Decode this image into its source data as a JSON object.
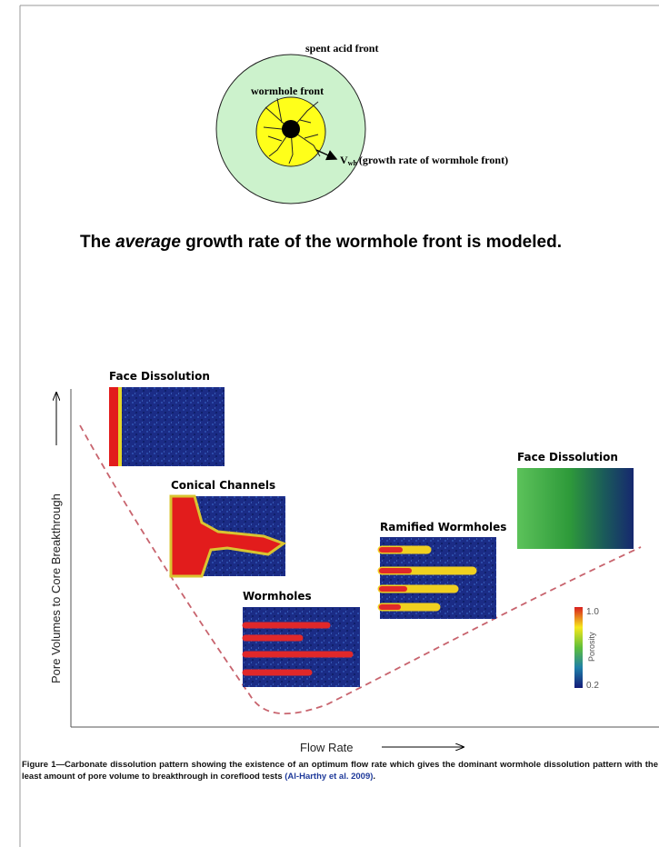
{
  "top_diagram": {
    "outer_label": "spent acid front",
    "inner_label": "wormhole front",
    "velocity_symbol": "V",
    "velocity_subscript": "wh",
    "velocity_label": "(growth rate of wormhole front)"
  },
  "heading": {
    "before": "The ",
    "emphasis": "average",
    "after": " growth rate of the wormhole front is modeled."
  },
  "figure": {
    "y_axis_label": "Pore Volumes to Core Breakthrough",
    "x_axis_label": "Flow Rate",
    "panels": [
      "Face Dissolution",
      "Conical Channels",
      "Wormholes",
      "Ramified Wormholes",
      "Face Dissolution"
    ],
    "colorbar": {
      "top": "1.0",
      "label": "Porosity",
      "bottom": "0.2"
    }
  },
  "caption": {
    "text": "Figure 1—Carbonate dissolution pattern showing the existence of an optimum flow rate which gives the dominant wormhole dissolution pattern with the least amount of pore volume to breakthrough in coreflood tests ",
    "citation": "(Al-Harthy et al. 2009)",
    "end": "."
  }
}
